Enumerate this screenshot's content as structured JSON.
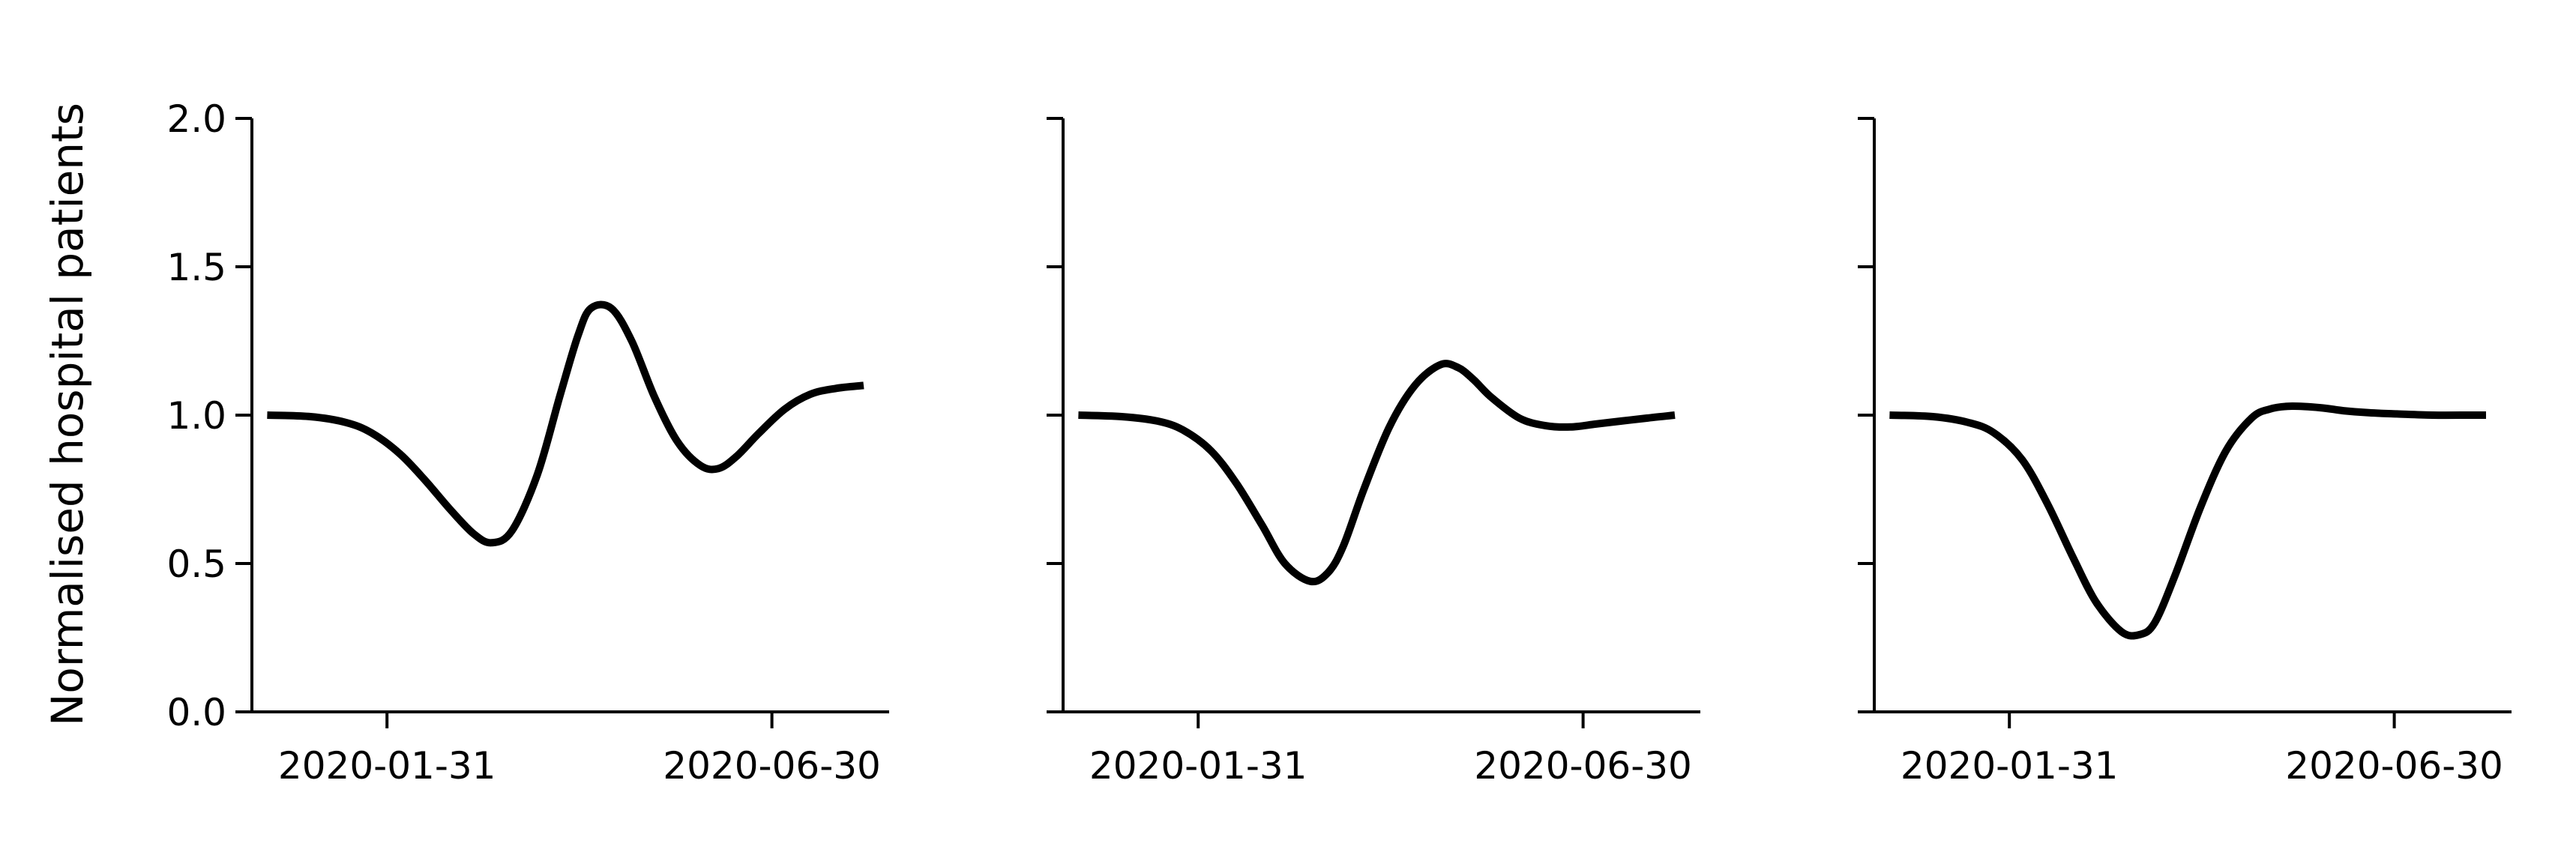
{
  "figure": {
    "ylabel": "Normalised hospital patients"
  },
  "chart_data": [
    {
      "type": "line",
      "x_type": "date",
      "xlim": [
        "2019-12-09",
        "2020-08-15"
      ],
      "ylim": [
        0,
        2
      ],
      "xticks": [
        "2020-01-31",
        "2020-06-30"
      ],
      "yticks": [
        0.0,
        0.5,
        1.0,
        1.5,
        2.0
      ],
      "ytick_labels": [
        "0.0",
        "0.5",
        "1.0",
        "1.5",
        "2.0"
      ],
      "show_ytick_labels": true,
      "grid": false,
      "color": "#000000",
      "series": [
        {
          "x": [
            "2019-12-15",
            "2020-01-01",
            "2020-01-15",
            "2020-01-25",
            "2020-02-05",
            "2020-02-15",
            "2020-02-25",
            "2020-03-05",
            "2020-03-12",
            "2020-03-20",
            "2020-03-30",
            "2020-04-08",
            "2020-04-15",
            "2020-04-20",
            "2020-04-28",
            "2020-05-06",
            "2020-05-15",
            "2020-05-24",
            "2020-06-02",
            "2020-06-09",
            "2020-06-16",
            "2020-06-25",
            "2020-07-05",
            "2020-07-15",
            "2020-07-25",
            "2020-08-05"
          ],
          "y": [
            1.0,
            0.995,
            0.975,
            0.94,
            0.87,
            0.78,
            0.68,
            0.6,
            0.57,
            0.61,
            0.8,
            1.07,
            1.27,
            1.36,
            1.36,
            1.25,
            1.06,
            0.91,
            0.83,
            0.82,
            0.86,
            0.94,
            1.02,
            1.07,
            1.09,
            1.1
          ]
        }
      ]
    },
    {
      "type": "line",
      "x_type": "date",
      "xlim": [
        "2019-12-09",
        "2020-08-15"
      ],
      "ylim": [
        0,
        2
      ],
      "xticks": [
        "2020-01-31",
        "2020-06-30"
      ],
      "yticks": [
        0.0,
        0.5,
        1.0,
        1.5,
        2.0
      ],
      "ytick_labels": [
        "0.0",
        "0.5",
        "1.0",
        "1.5",
        "2.0"
      ],
      "show_ytick_labels": false,
      "grid": false,
      "color": "#000000",
      "series": [
        {
          "x": [
            "2019-12-15",
            "2020-01-01",
            "2020-01-15",
            "2020-01-25",
            "2020-02-05",
            "2020-02-15",
            "2020-02-25",
            "2020-03-05",
            "2020-03-15",
            "2020-03-22",
            "2020-03-28",
            "2020-04-05",
            "2020-04-15",
            "2020-04-25",
            "2020-05-05",
            "2020-05-12",
            "2020-05-18",
            "2020-05-25",
            "2020-06-05",
            "2020-06-15",
            "2020-06-25",
            "2020-07-05",
            "2020-07-15",
            "2020-07-25",
            "2020-08-05"
          ],
          "y": [
            1.0,
            0.995,
            0.98,
            0.95,
            0.88,
            0.77,
            0.63,
            0.5,
            0.44,
            0.47,
            0.56,
            0.75,
            0.96,
            1.1,
            1.17,
            1.16,
            1.12,
            1.06,
            0.99,
            0.965,
            0.96,
            0.97,
            0.98,
            0.99,
            1.0
          ]
        }
      ]
    },
    {
      "type": "line",
      "x_type": "date",
      "xlim": [
        "2019-12-09",
        "2020-08-15"
      ],
      "ylim": [
        0,
        2
      ],
      "xticks": [
        "2020-01-31",
        "2020-06-30"
      ],
      "yticks": [
        0.0,
        0.5,
        1.0,
        1.5,
        2.0
      ],
      "ytick_labels": [
        "0.0",
        "0.5",
        "1.0",
        "1.5",
        "2.0"
      ],
      "show_ytick_labels": false,
      "grid": false,
      "color": "#000000",
      "series": [
        {
          "x": [
            "2019-12-15",
            "2020-01-01",
            "2020-01-15",
            "2020-01-25",
            "2020-02-05",
            "2020-02-15",
            "2020-02-25",
            "2020-03-05",
            "2020-03-15",
            "2020-03-22",
            "2020-03-28",
            "2020-04-05",
            "2020-04-15",
            "2020-04-25",
            "2020-05-05",
            "2020-05-12",
            "2020-05-20",
            "2020-06-01",
            "2020-06-10",
            "2020-06-20",
            "2020-07-01",
            "2020-07-15",
            "2020-07-30",
            "2020-08-05"
          ],
          "y": [
            1.0,
            0.995,
            0.975,
            0.94,
            0.85,
            0.7,
            0.52,
            0.37,
            0.27,
            0.26,
            0.3,
            0.46,
            0.69,
            0.88,
            0.99,
            1.02,
            1.03,
            1.025,
            1.015,
            1.008,
            1.004,
            1.0,
            1.0,
            1.0
          ]
        }
      ]
    }
  ]
}
